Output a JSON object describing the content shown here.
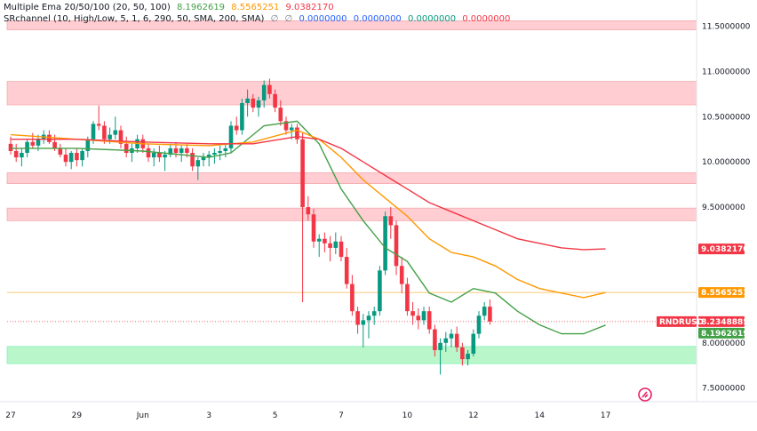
{
  "legend": {
    "ema_title": "Multiple Ema 20/50/100 (20, 50, 100)",
    "ema_values": [
      "8.1962619",
      "8.5565251",
      "9.0382170"
    ],
    "ema_colors": [
      "#43a047",
      "#ff9800",
      "#f23645"
    ],
    "sr_title": "SRchannel (10, High/Low, 5, 1, 6, 290, 50, SMA, 200, SMA)",
    "sr_symbols": [
      "∅",
      "∅"
    ],
    "sr_values": [
      "0.0000000",
      "0.0000000",
      "0.0000000",
      "0.0000000"
    ],
    "sr_colors": [
      "#2962ff",
      "#2962ff",
      "#089981",
      "#f23645"
    ]
  },
  "colors": {
    "up": "#089981",
    "down": "#f23645",
    "resistance_zone": "#ffcdd2",
    "support_zone": "#b9f6ca",
    "text": "#131722"
  },
  "symbol_tag": "RNDRUSD",
  "price_tags": [
    {
      "value": 9.038217,
      "label": "9.0382170",
      "color": "#f23645"
    },
    {
      "value": 8.5565251,
      "label": "8.5565251",
      "color": "#ff9800"
    },
    {
      "value": 8.2348885,
      "label": "8.2348885",
      "color": "#f23645"
    },
    {
      "value": 8.1962619,
      "label": "8.1962619",
      "color": "#43a047"
    }
  ],
  "chart_data": {
    "type": "candlestick",
    "y_axis": {
      "range": [
        7.35,
        11.75
      ],
      "ticks": [
        {
          "value": 11.5,
          "label": "11.5000000"
        },
        {
          "value": 11.0,
          "label": "11.0000000"
        },
        {
          "value": 10.5,
          "label": "10.5000000"
        },
        {
          "value": 10.0,
          "label": "10.0000000"
        },
        {
          "value": 9.5,
          "label": "9.5000000"
        },
        {
          "value": 8.0,
          "label": "8.0000000"
        },
        {
          "value": 7.5,
          "label": "7.5000000"
        }
      ]
    },
    "x_axis": {
      "labels": [
        {
          "label": "27",
          "bar": 0
        },
        {
          "label": "29",
          "bar": 12
        },
        {
          "label": "Jun",
          "bar": 24
        },
        {
          "label": "3",
          "bar": 36
        },
        {
          "label": "5",
          "bar": 48
        },
        {
          "label": "7",
          "bar": 60
        },
        {
          "label": "10",
          "bar": 72
        },
        {
          "label": "12",
          "bar": 84
        },
        {
          "label": "14",
          "bar": 96
        },
        {
          "label": "17",
          "bar": 108
        }
      ]
    },
    "zones": [
      {
        "type": "resistance",
        "low": 11.46,
        "high": 11.56
      },
      {
        "type": "resistance",
        "low": 10.63,
        "high": 10.89
      },
      {
        "type": "resistance",
        "low": 9.76,
        "high": 9.88
      },
      {
        "type": "resistance",
        "low": 9.35,
        "high": 9.49
      },
      {
        "type": "support",
        "low": 7.77,
        "high": 7.96
      }
    ],
    "candles_ohlc": [
      [
        10.2,
        10.28,
        10.08,
        10.12
      ],
      [
        10.12,
        10.2,
        10.0,
        10.05
      ],
      [
        10.05,
        10.15,
        9.95,
        10.1
      ],
      [
        10.1,
        10.25,
        10.05,
        10.22
      ],
      [
        10.22,
        10.32,
        10.15,
        10.18
      ],
      [
        10.18,
        10.3,
        10.12,
        10.25
      ],
      [
        10.25,
        10.35,
        10.2,
        10.3
      ],
      [
        10.3,
        10.35,
        10.2,
        10.22
      ],
      [
        10.22,
        10.3,
        10.12,
        10.15
      ],
      [
        10.15,
        10.2,
        10.05,
        10.08
      ],
      [
        10.08,
        10.15,
        9.95,
        10.0
      ],
      [
        10.0,
        10.12,
        9.92,
        10.1
      ],
      [
        10.1,
        10.15,
        9.95,
        10.02
      ],
      [
        10.02,
        10.15,
        9.95,
        10.12
      ],
      [
        10.12,
        10.28,
        10.05,
        10.25
      ],
      [
        10.25,
        10.45,
        10.2,
        10.42
      ],
      [
        10.42,
        10.62,
        10.35,
        10.4
      ],
      [
        10.4,
        10.45,
        10.2,
        10.25
      ],
      [
        10.25,
        10.38,
        10.2,
        10.3
      ],
      [
        10.3,
        10.5,
        10.25,
        10.35
      ],
      [
        10.35,
        10.4,
        10.15,
        10.2
      ],
      [
        10.2,
        10.28,
        10.05,
        10.1
      ],
      [
        10.1,
        10.2,
        10.0,
        10.15
      ],
      [
        10.15,
        10.3,
        10.1,
        10.25
      ],
      [
        10.25,
        10.3,
        10.1,
        10.15
      ],
      [
        10.15,
        10.2,
        10.0,
        10.05
      ],
      [
        10.05,
        10.15,
        9.95,
        10.1
      ],
      [
        10.1,
        10.18,
        10.0,
        10.05
      ],
      [
        10.05,
        10.12,
        9.9,
        10.08
      ],
      [
        10.08,
        10.2,
        10.05,
        10.15
      ],
      [
        10.15,
        10.22,
        10.05,
        10.1
      ],
      [
        10.1,
        10.18,
        10.0,
        10.15
      ],
      [
        10.15,
        10.2,
        10.05,
        10.1
      ],
      [
        10.1,
        10.15,
        9.9,
        9.95
      ],
      [
        9.95,
        10.05,
        9.8,
        10.02
      ],
      [
        10.02,
        10.1,
        9.95,
        10.05
      ],
      [
        10.05,
        10.12,
        9.95,
        10.08
      ],
      [
        10.08,
        10.15,
        9.98,
        10.1
      ],
      [
        10.1,
        10.18,
        10.02,
        10.12
      ],
      [
        10.12,
        10.2,
        10.05,
        10.15
      ],
      [
        10.15,
        10.45,
        10.1,
        10.4
      ],
      [
        10.4,
        10.5,
        10.3,
        10.35
      ],
      [
        10.35,
        10.7,
        10.3,
        10.65
      ],
      [
        10.65,
        10.8,
        10.5,
        10.7
      ],
      [
        10.7,
        10.75,
        10.55,
        10.6
      ],
      [
        10.6,
        10.72,
        10.5,
        10.68
      ],
      [
        10.68,
        10.9,
        10.6,
        10.85
      ],
      [
        10.85,
        10.92,
        10.7,
        10.75
      ],
      [
        10.75,
        10.8,
        10.55,
        10.6
      ],
      [
        10.6,
        10.68,
        10.4,
        10.45
      ],
      [
        10.45,
        10.5,
        10.3,
        10.35
      ],
      [
        10.35,
        10.42,
        10.25,
        10.38
      ],
      [
        10.38,
        10.42,
        10.2,
        10.25
      ],
      [
        10.25,
        10.32,
        8.45,
        9.5
      ],
      [
        9.5,
        9.62,
        9.35,
        9.42
      ],
      [
        9.42,
        9.48,
        9.05,
        9.12
      ],
      [
        9.12,
        9.2,
        8.95,
        9.15
      ],
      [
        9.15,
        9.22,
        9.0,
        9.1
      ],
      [
        9.1,
        9.18,
        8.9,
        9.05
      ],
      [
        9.05,
        9.22,
        8.98,
        9.12
      ],
      [
        9.12,
        9.18,
        8.9,
        8.95
      ],
      [
        8.95,
        9.05,
        8.6,
        8.65
      ],
      [
        8.65,
        8.75,
        8.3,
        8.35
      ],
      [
        8.35,
        8.4,
        8.1,
        8.2
      ],
      [
        8.2,
        8.32,
        7.95,
        8.25
      ],
      [
        8.25,
        8.35,
        8.05,
        8.3
      ],
      [
        8.3,
        8.4,
        8.2,
        8.35
      ],
      [
        8.35,
        8.85,
        8.3,
        8.8
      ],
      [
        8.8,
        9.45,
        8.75,
        9.4
      ],
      [
        9.4,
        9.5,
        9.15,
        9.3
      ],
      [
        9.3,
        9.35,
        8.75,
        8.85
      ],
      [
        8.85,
        8.95,
        8.55,
        8.65
      ],
      [
        8.65,
        8.72,
        8.3,
        8.35
      ],
      [
        8.35,
        8.45,
        8.2,
        8.3
      ],
      [
        8.3,
        8.38,
        8.15,
        8.25
      ],
      [
        8.25,
        8.4,
        8.2,
        8.35
      ],
      [
        8.35,
        8.4,
        8.1,
        8.15
      ],
      [
        8.15,
        8.2,
        7.85,
        7.92
      ],
      [
        7.92,
        8.05,
        7.65,
        8.0
      ],
      [
        8.0,
        8.12,
        7.9,
        8.05
      ],
      [
        8.05,
        8.15,
        7.95,
        8.1
      ],
      [
        8.1,
        8.18,
        7.9,
        7.95
      ],
      [
        7.95,
        8.0,
        7.75,
        7.82
      ],
      [
        7.82,
        7.92,
        7.75,
        7.88
      ],
      [
        7.88,
        8.15,
        7.85,
        8.1
      ],
      [
        8.1,
        8.35,
        8.05,
        8.3
      ],
      [
        8.3,
        8.45,
        8.25,
        8.4
      ],
      [
        8.4,
        8.48,
        8.2,
        8.2348885
      ]
    ],
    "series": [
      {
        "name": "EMA 20",
        "color": "#43a047",
        "points": [
          [
            0,
            10.15
          ],
          [
            12,
            10.15
          ],
          [
            24,
            10.12
          ],
          [
            36,
            10.05
          ],
          [
            40,
            10.1
          ],
          [
            46,
            10.4
          ],
          [
            52,
            10.45
          ],
          [
            56,
            10.2
          ],
          [
            60,
            9.7
          ],
          [
            64,
            9.35
          ],
          [
            68,
            9.05
          ],
          [
            72,
            8.9
          ],
          [
            76,
            8.55
          ],
          [
            80,
            8.45
          ],
          [
            84,
            8.6
          ],
          [
            88,
            8.55
          ],
          [
            92,
            8.35
          ],
          [
            96,
            8.2
          ],
          [
            100,
            8.1
          ],
          [
            104,
            8.1
          ],
          [
            108,
            8.1962619
          ]
        ]
      },
      {
        "name": "EMA 50",
        "color": "#ff9800",
        "points": [
          [
            0,
            10.3
          ],
          [
            12,
            10.25
          ],
          [
            24,
            10.2
          ],
          [
            36,
            10.18
          ],
          [
            44,
            10.22
          ],
          [
            52,
            10.35
          ],
          [
            56,
            10.25
          ],
          [
            60,
            10.05
          ],
          [
            64,
            9.8
          ],
          [
            68,
            9.6
          ],
          [
            72,
            9.4
          ],
          [
            76,
            9.15
          ],
          [
            80,
            9.0
          ],
          [
            84,
            8.95
          ],
          [
            88,
            8.85
          ],
          [
            92,
            8.7
          ],
          [
            96,
            8.6
          ],
          [
            100,
            8.55
          ],
          [
            104,
            8.5
          ],
          [
            108,
            8.5565251
          ]
        ]
      },
      {
        "name": "EMA 100",
        "color": "#f23645",
        "points": [
          [
            0,
            10.25
          ],
          [
            12,
            10.25
          ],
          [
            24,
            10.22
          ],
          [
            36,
            10.2
          ],
          [
            44,
            10.2
          ],
          [
            52,
            10.28
          ],
          [
            56,
            10.25
          ],
          [
            60,
            10.15
          ],
          [
            64,
            10.0
          ],
          [
            68,
            9.85
          ],
          [
            72,
            9.7
          ],
          [
            76,
            9.55
          ],
          [
            80,
            9.45
          ],
          [
            84,
            9.35
          ],
          [
            88,
            9.25
          ],
          [
            92,
            9.15
          ],
          [
            96,
            9.1
          ],
          [
            100,
            9.05
          ],
          [
            104,
            9.03
          ],
          [
            108,
            9.038217
          ]
        ]
      }
    ]
  }
}
